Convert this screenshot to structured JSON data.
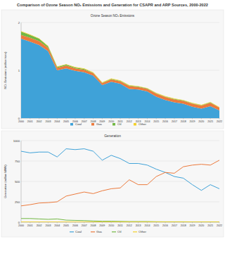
{
  "chart_data": [
    {
      "type": "area",
      "title": "Comparison of Ozone Season NOₓ Emissions and Generation for CSAPR and ARP Sources, 2000-2022",
      "subtitle": "Ozone Season NOₓ Emissions",
      "y_label": "NOₓ Emissions (million tons)",
      "x": [
        2000,
        2001,
        2002,
        2003,
        2004,
        2005,
        2006,
        2007,
        2008,
        2009,
        2010,
        2011,
        2012,
        2013,
        2014,
        2015,
        2016,
        2017,
        2018,
        2019,
        2020,
        2021,
        2022
      ],
      "xlim": [
        2000,
        2022
      ],
      "xticks": [
        2000,
        2001,
        2002,
        2003,
        2004,
        2005,
        2006,
        2007,
        2008,
        2009,
        2010,
        2011,
        2012,
        2013,
        2014,
        2015,
        2016,
        2017,
        2018,
        2019,
        2020,
        2021,
        2022
      ],
      "ylim": [
        0,
        2
      ],
      "yticks": [
        0,
        1,
        2
      ],
      "grid": true,
      "stacked": true,
      "legend": "bottom",
      "series": [
        {
          "name": "Coal",
          "color": "#3fa2d8",
          "values": [
            1.66,
            1.6,
            1.53,
            1.4,
            1.0,
            1.04,
            0.99,
            0.96,
            0.89,
            0.69,
            0.76,
            0.72,
            0.61,
            0.6,
            0.56,
            0.45,
            0.38,
            0.33,
            0.3,
            0.24,
            0.2,
            0.25,
            0.16
          ]
        },
        {
          "name": "Gas",
          "color": "#ec7a3c",
          "values": [
            0.08,
            0.08,
            0.08,
            0.07,
            0.05,
            0.06,
            0.05,
            0.05,
            0.05,
            0.04,
            0.05,
            0.05,
            0.06,
            0.05,
            0.05,
            0.06,
            0.06,
            0.06,
            0.06,
            0.06,
            0.06,
            0.07,
            0.06
          ]
        },
        {
          "name": "Oil",
          "color": "#72b843",
          "values": [
            0.07,
            0.06,
            0.05,
            0.03,
            0.02,
            0.02,
            0.02,
            0.02,
            0.01,
            0.01,
            0.01,
            0.01,
            0.01,
            0.01,
            0.01,
            0.01,
            0.01,
            0.01,
            0.01,
            0.01,
            0.01,
            0.01,
            0.0
          ]
        },
        {
          "name": "Other",
          "color": "#f3d02a",
          "values": [
            0.01,
            0.01,
            0.01,
            0.01,
            0.01,
            0.01,
            0.01,
            0.01,
            0.01,
            0.01,
            0.01,
            0.01,
            0.01,
            0.01,
            0.01,
            0.01,
            0.01,
            0.01,
            0.01,
            0.01,
            0.01,
            0.01,
            0.01
          ]
        }
      ]
    },
    {
      "type": "line",
      "title": "Generation",
      "y_label": "Generation (million MWh)",
      "x": [
        2000,
        2001,
        2002,
        2003,
        2004,
        2005,
        2006,
        2007,
        2008,
        2009,
        2010,
        2011,
        2012,
        2013,
        2014,
        2015,
        2016,
        2017,
        2018,
        2019,
        2020,
        2021,
        2022
      ],
      "xlim": [
        2000,
        2022
      ],
      "xticks": [
        2000,
        2001,
        2002,
        2003,
        2004,
        2005,
        2006,
        2007,
        2008,
        2009,
        2010,
        2011,
        2012,
        2013,
        2014,
        2015,
        2016,
        2017,
        2018,
        2019,
        2020,
        2021,
        2022
      ],
      "ylim": [
        0,
        1000
      ],
      "yticks": [
        0,
        250,
        500,
        750,
        1000
      ],
      "grid": true,
      "legend": "bottom",
      "series": [
        {
          "name": "Coal",
          "color": "#3fa2d8",
          "values": [
            870,
            850,
            860,
            860,
            800,
            900,
            890,
            900,
            870,
            760,
            820,
            780,
            720,
            720,
            700,
            650,
            610,
            560,
            540,
            460,
            390,
            460,
            410
          ]
        },
        {
          "name": "Gas",
          "color": "#ec7a3c",
          "values": [
            200,
            215,
            235,
            240,
            250,
            320,
            345,
            370,
            350,
            385,
            410,
            420,
            520,
            460,
            460,
            560,
            610,
            600,
            680,
            700,
            710,
            700,
            760
          ]
        },
        {
          "name": "Oil",
          "color": "#72b843",
          "values": [
            45,
            45,
            40,
            35,
            40,
            25,
            22,
            20,
            15,
            12,
            12,
            10,
            8,
            8,
            8,
            6,
            5,
            5,
            5,
            4,
            4,
            4,
            4
          ]
        },
        {
          "name": "Other",
          "color": "#f3d02a",
          "values": [
            3,
            3,
            3,
            3,
            3,
            3,
            3,
            3,
            3,
            3,
            3,
            3,
            3,
            3,
            3,
            3,
            3,
            3,
            3,
            3,
            3,
            3,
            3
          ]
        }
      ]
    }
  ]
}
